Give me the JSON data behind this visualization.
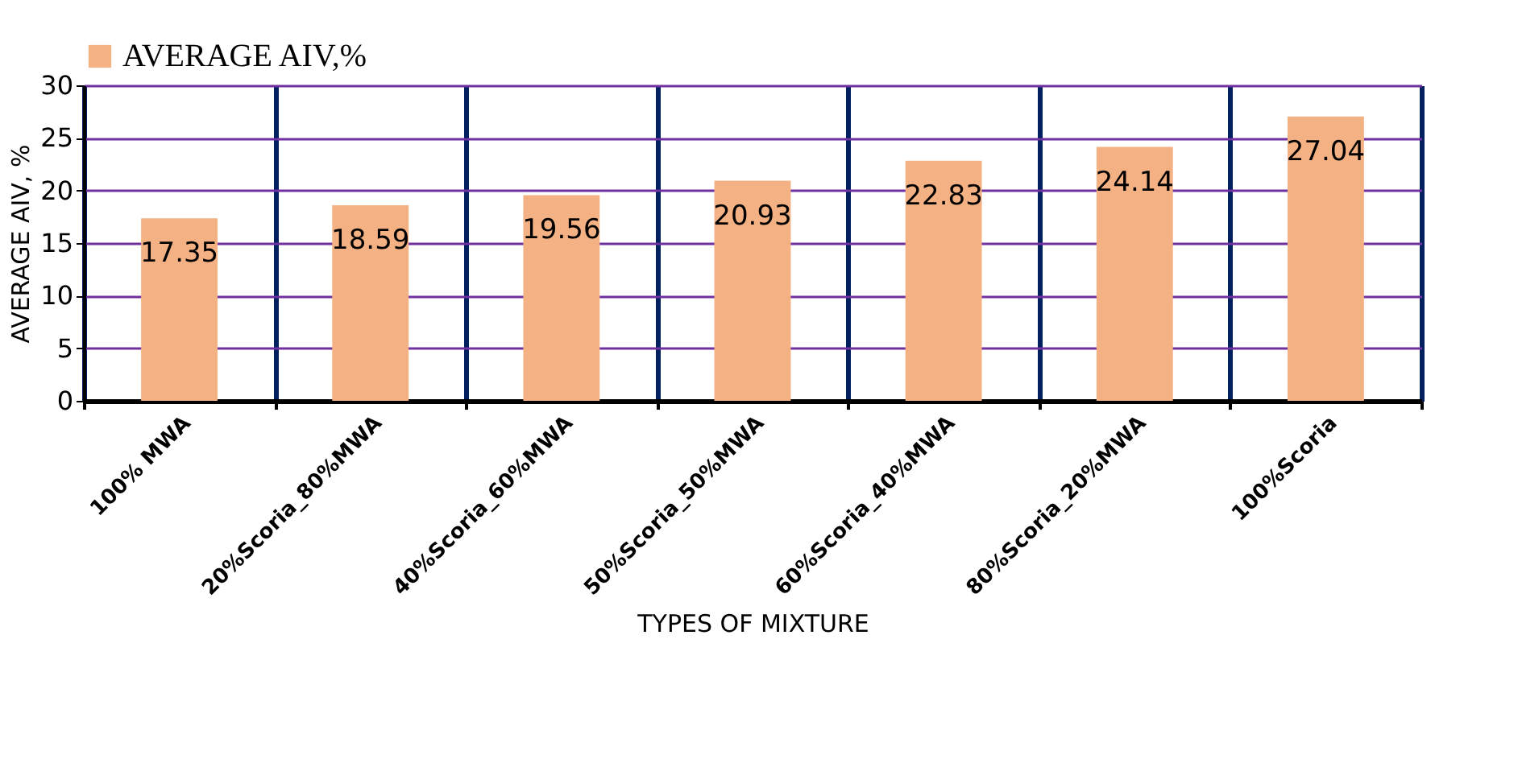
{
  "chart_data": {
    "type": "bar",
    "xlabel": "TYPES OF MIXTURE",
    "ylabel": "AVERAGE AIV, %",
    "categories": [
      "100% MWA",
      "20%Scoria_80%MWA",
      "40%Scoria_60%MWA",
      "50%Scoria_50%MWA",
      "60%Scoria_40%MWA",
      "80%Scoria_20%MWA",
      "100%Scoria"
    ],
    "series": [
      {
        "name": "AVERAGE AIV,%",
        "color": "#f4b183",
        "values": [
          17.35,
          18.59,
          19.56,
          20.93,
          22.83,
          24.14,
          27.04
        ]
      }
    ],
    "ylim": [
      0,
      30
    ],
    "yticks": [
      0,
      5,
      10,
      15,
      20,
      25,
      30
    ],
    "grid": true,
    "legend": "top",
    "data_labels": true
  }
}
